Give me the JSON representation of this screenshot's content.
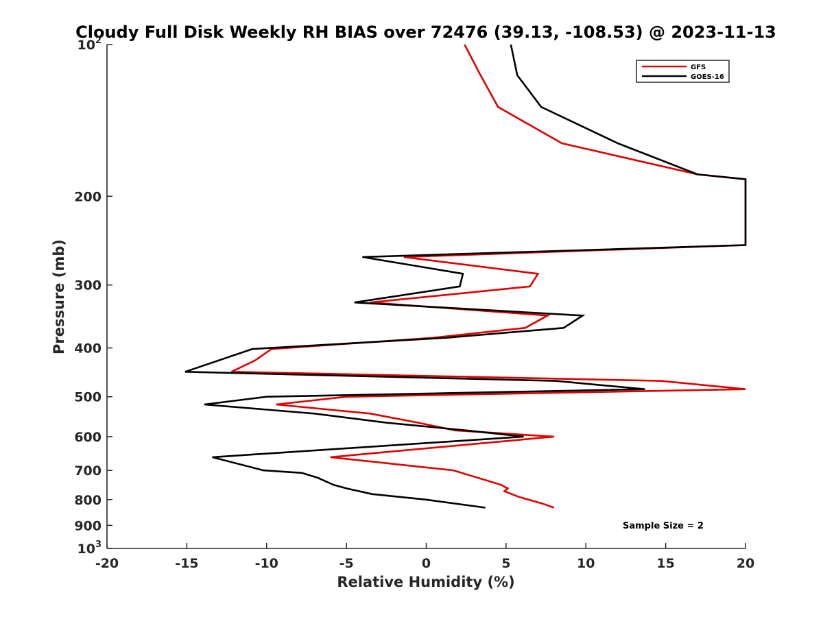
{
  "chart_data": {
    "type": "line",
    "title": "Cloudy Full Disk Weekly RH BIAS over 72476 (39.13, -108.53) @ 2023-11-13",
    "xlabel": "Relative Humidity (%)",
    "ylabel": "Pressure (mb)",
    "xlim": [
      -20,
      20
    ],
    "ylim": [
      100,
      1000
    ],
    "yscale": "log",
    "y_reversed": true,
    "xticks": [
      -20,
      -15,
      -10,
      -5,
      0,
      5,
      10,
      15,
      20
    ],
    "xtick_labels": [
      "-20",
      "-15",
      "-10",
      "-5",
      "0",
      "5",
      "10",
      "15",
      "20"
    ],
    "yticks": [
      100,
      200,
      300,
      400,
      500,
      600,
      700,
      800,
      900,
      1000
    ],
    "ytick_labels": [
      {
        "base": "10",
        "exp": "2"
      },
      {
        "base": "200",
        "exp": ""
      },
      {
        "base": "300",
        "exp": ""
      },
      {
        "base": "400",
        "exp": ""
      },
      {
        "base": "500",
        "exp": ""
      },
      {
        "base": "600",
        "exp": ""
      },
      {
        "base": "700",
        "exp": ""
      },
      {
        "base": "800",
        "exp": ""
      },
      {
        "base": "900",
        "exp": ""
      },
      {
        "base": "10",
        "exp": "3"
      }
    ],
    "legend_position": "top-right",
    "grid": false,
    "annotation": "Sample Size = 2",
    "series": [
      {
        "name": "GFS",
        "color": "#e00000",
        "points": [
          [
            2.4,
            100
          ],
          [
            3.4,
            115
          ],
          [
            4.5,
            133
          ],
          [
            8.5,
            157
          ],
          [
            17,
            181
          ],
          [
            20,
            185
          ],
          [
            20,
            250
          ],
          [
            -1.4,
            264
          ],
          [
            7,
            285
          ],
          [
            6.5,
            302
          ],
          [
            -3.5,
            325
          ],
          [
            7.6,
            345
          ],
          [
            6.2,
            365
          ],
          [
            0.4,
            382
          ],
          [
            -9.7,
            402
          ],
          [
            -10.7,
            423
          ],
          [
            -12.2,
            446
          ],
          [
            14.7,
            465
          ],
          [
            20,
            483
          ],
          [
            -5,
            500
          ],
          [
            -9.4,
            518
          ],
          [
            -3.5,
            540
          ],
          [
            -0.5,
            563
          ],
          [
            1.8,
            583
          ],
          [
            8,
            600
          ],
          [
            -6,
            659
          ],
          [
            1.7,
            700
          ],
          [
            4.7,
            748
          ],
          [
            5.1,
            760
          ],
          [
            4.9,
            770
          ],
          [
            5.8,
            790
          ],
          [
            7.3,
            815
          ],
          [
            8,
            830
          ]
        ]
      },
      {
        "name": "GOES-16",
        "color": "#000000",
        "points": [
          [
            5.3,
            100
          ],
          [
            5.7,
            115
          ],
          [
            7.2,
            133
          ],
          [
            12,
            157
          ],
          [
            17,
            181
          ],
          [
            20,
            185
          ],
          [
            20,
            250
          ],
          [
            -4,
            264
          ],
          [
            2.3,
            285
          ],
          [
            2.1,
            302
          ],
          [
            -4.5,
            325
          ],
          [
            9.8,
            345
          ],
          [
            8.6,
            365
          ],
          [
            1.2,
            382
          ],
          [
            -10.9,
            402
          ],
          [
            -15.1,
            446
          ],
          [
            8.1,
            465
          ],
          [
            13.7,
            483
          ],
          [
            -10,
            500
          ],
          [
            -13.9,
            518
          ],
          [
            -7,
            540
          ],
          [
            -2.5,
            563
          ],
          [
            2.5,
            583
          ],
          [
            6.1,
            600
          ],
          [
            -13.4,
            659
          ],
          [
            -10.2,
            700
          ],
          [
            -7.8,
            708
          ],
          [
            -6.8,
            724
          ],
          [
            -5.8,
            748
          ],
          [
            -5,
            760
          ],
          [
            -3.4,
            780
          ],
          [
            0,
            800
          ],
          [
            3.7,
            830
          ]
        ]
      }
    ]
  }
}
